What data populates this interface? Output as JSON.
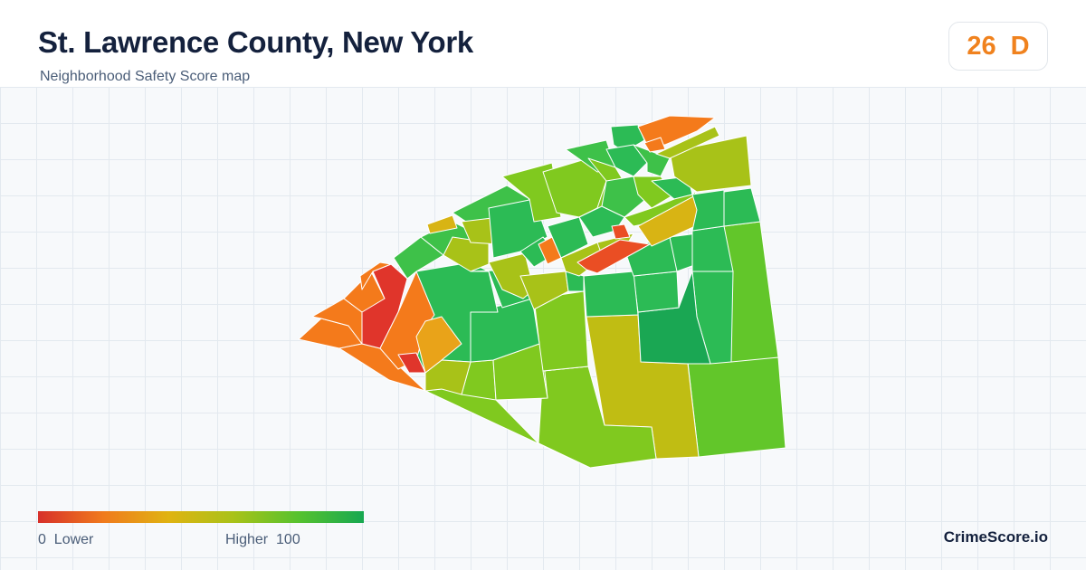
{
  "header": {
    "title": "St. Lawrence County, New York",
    "subtitle": "Neighborhood Safety Score map"
  },
  "score": {
    "value": "26",
    "grade": "D",
    "color": "#f0821e"
  },
  "legend": {
    "low_value": "0",
    "low_label": "Lower",
    "high_label": "Higher",
    "high_value": "100",
    "gradient": [
      "#d7302a",
      "#f07a1d",
      "#e0b312",
      "#a9c218",
      "#56c22e",
      "#17a851"
    ]
  },
  "brand": "CrimeScore.io",
  "map_colors": {
    "red": "#e0352b",
    "red_orange": "#ea4e24",
    "orange": "#f47a1b",
    "amber": "#e9a319",
    "gold": "#d8b414",
    "olive": "#c0bd13",
    "yellow_green": "#a8c218",
    "lime": "#80c91f",
    "light_green": "#62c62a",
    "green": "#3ec149",
    "mid_green": "#2cbb55",
    "dark_green": "#1aa753",
    "border": "#ffffff"
  }
}
